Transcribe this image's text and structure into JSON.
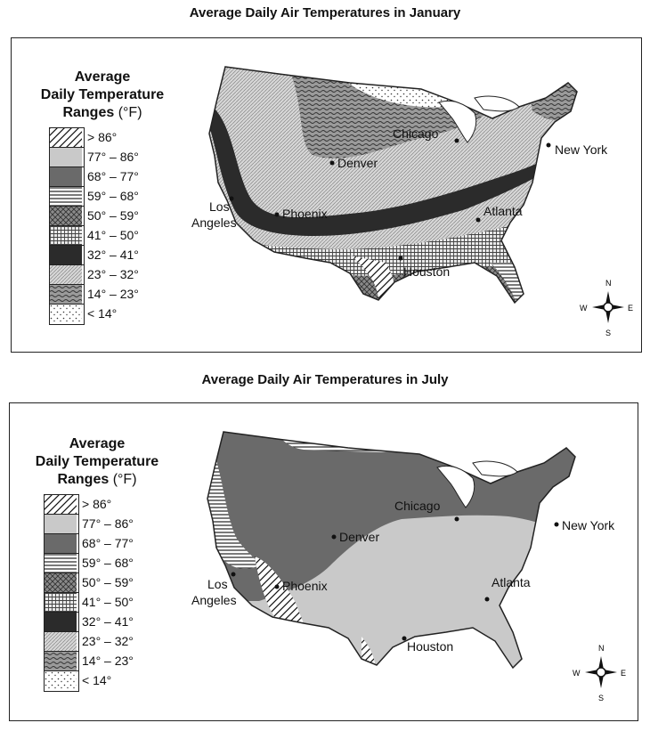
{
  "maps": [
    {
      "title": "Average Daily Air Temperatures in January",
      "legend": {
        "heading1": "Average",
        "heading2": "Daily Temperature",
        "heading3": "Ranges",
        "unit": "(°F)",
        "ranges": [
          {
            "label": "> 86°",
            "pattern": "diag-hatch"
          },
          {
            "label": "77° – 86°",
            "pattern": "light-gray"
          },
          {
            "label": "68° – 77°",
            "pattern": "dark-gray"
          },
          {
            "label": "59° – 68°",
            "pattern": "horizontal-lines"
          },
          {
            "label": "50° – 59°",
            "pattern": "crosshatch"
          },
          {
            "label": "41° – 50°",
            "pattern": "grid"
          },
          {
            "label": "32° – 41°",
            "pattern": "black"
          },
          {
            "label": "23° – 32°",
            "pattern": "fine-diagonal"
          },
          {
            "label": "14° – 23°",
            "pattern": "wavy"
          },
          {
            "label": "< 14°",
            "pattern": "dots"
          }
        ]
      },
      "cities": {
        "chicago": "Chicago",
        "denver": "Denver",
        "new_york": "New York",
        "los": "Los",
        "angeles": "Angeles",
        "phoenix": "Phoenix",
        "atlanta": "Atlanta",
        "houston": "Houston"
      },
      "compass": {
        "n": "N",
        "s": "S",
        "e": "E",
        "w": "W"
      }
    },
    {
      "title": "Average Daily Air Temperatures in July",
      "legend": {
        "heading1": "Average",
        "heading2": "Daily Temperature",
        "heading3": "Ranges",
        "unit": "(°F)",
        "ranges": [
          {
            "label": "> 86°",
            "pattern": "diag-hatch"
          },
          {
            "label": "77° – 86°",
            "pattern": "light-gray"
          },
          {
            "label": "68° – 77°",
            "pattern": "dark-gray"
          },
          {
            "label": "59° – 68°",
            "pattern": "horizontal-lines"
          },
          {
            "label": "50° – 59°",
            "pattern": "crosshatch"
          },
          {
            "label": "41° – 50°",
            "pattern": "grid"
          },
          {
            "label": "32° – 41°",
            "pattern": "black"
          },
          {
            "label": "23° – 32°",
            "pattern": "fine-diagonal"
          },
          {
            "label": "14° – 23°",
            "pattern": "wavy"
          },
          {
            "label": "< 14°",
            "pattern": "dots"
          }
        ]
      },
      "cities": {
        "chicago": "Chicago",
        "denver": "Denver",
        "new_york": "New York",
        "los": "Los",
        "angeles": "Angeles",
        "phoenix": "Phoenix",
        "atlanta": "Atlanta",
        "houston": "Houston"
      },
      "compass": {
        "n": "N",
        "s": "S",
        "e": "E",
        "w": "W"
      }
    }
  ]
}
